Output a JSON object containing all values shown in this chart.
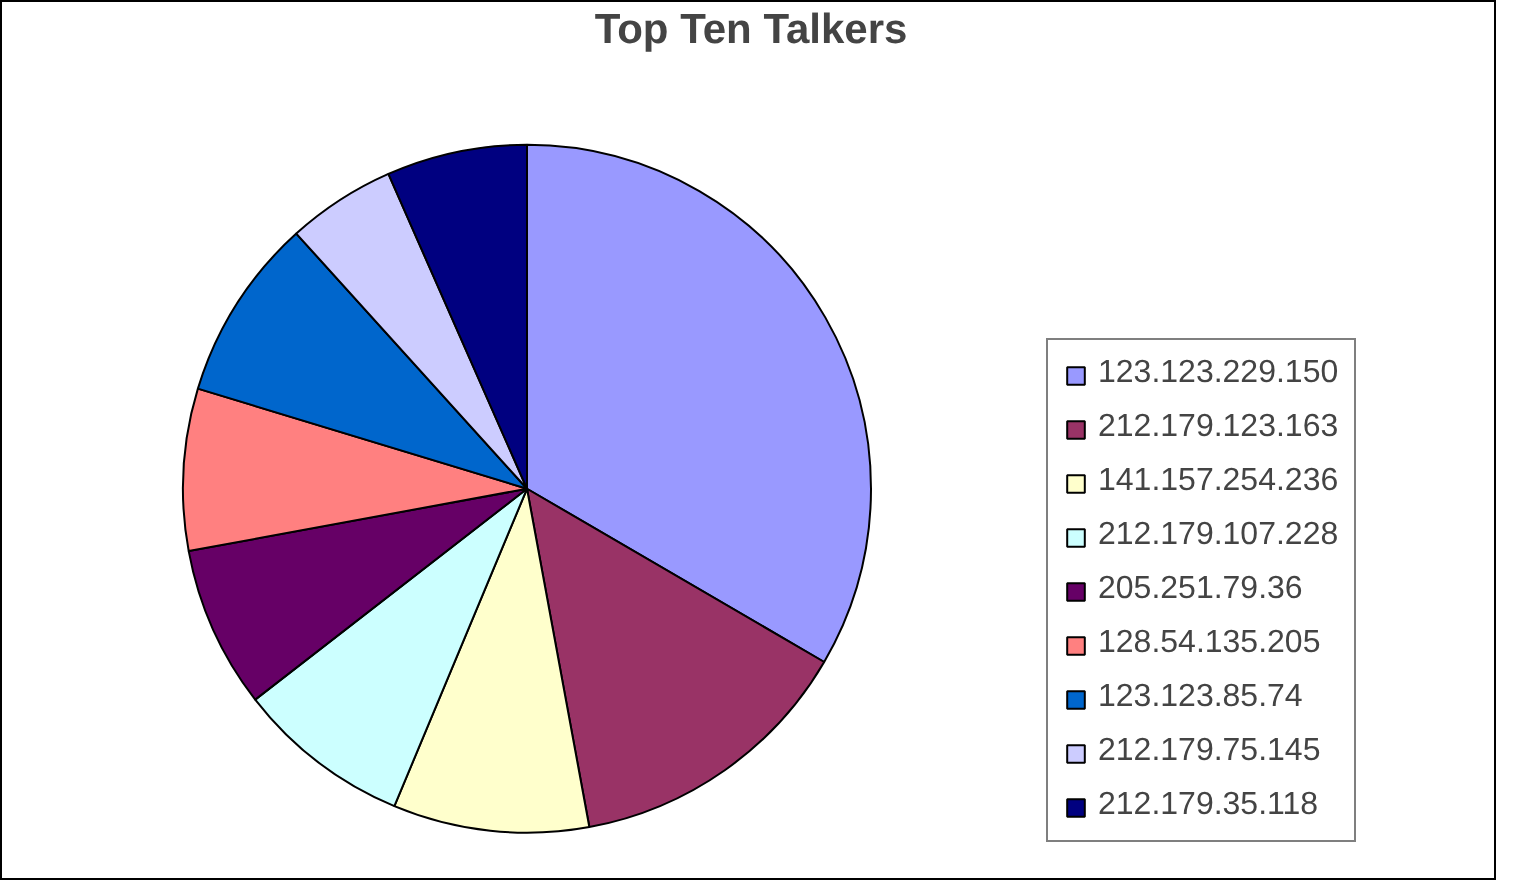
{
  "chart_data": {
    "type": "pie",
    "title": "Top Ten Talkers",
    "categories": [
      "123.123.229.150",
      "212.179.123.163",
      "141.157.254.236",
      "212.179.107.228",
      "205.251.79.36",
      "128.54.135.205",
      "123.123.85.74",
      "212.179.75.145",
      "212.179.35.118"
    ],
    "values": [
      33.4,
      13.7,
      9.2,
      8.2,
      7.6,
      7.6,
      8.6,
      5.1,
      6.6
    ],
    "colors": [
      "#9999ff",
      "#993366",
      "#ffffcc",
      "#ccffff",
      "#660066",
      "#ff8080",
      "#0066cc",
      "#ccccff",
      "#000080"
    ],
    "legend": "right"
  }
}
